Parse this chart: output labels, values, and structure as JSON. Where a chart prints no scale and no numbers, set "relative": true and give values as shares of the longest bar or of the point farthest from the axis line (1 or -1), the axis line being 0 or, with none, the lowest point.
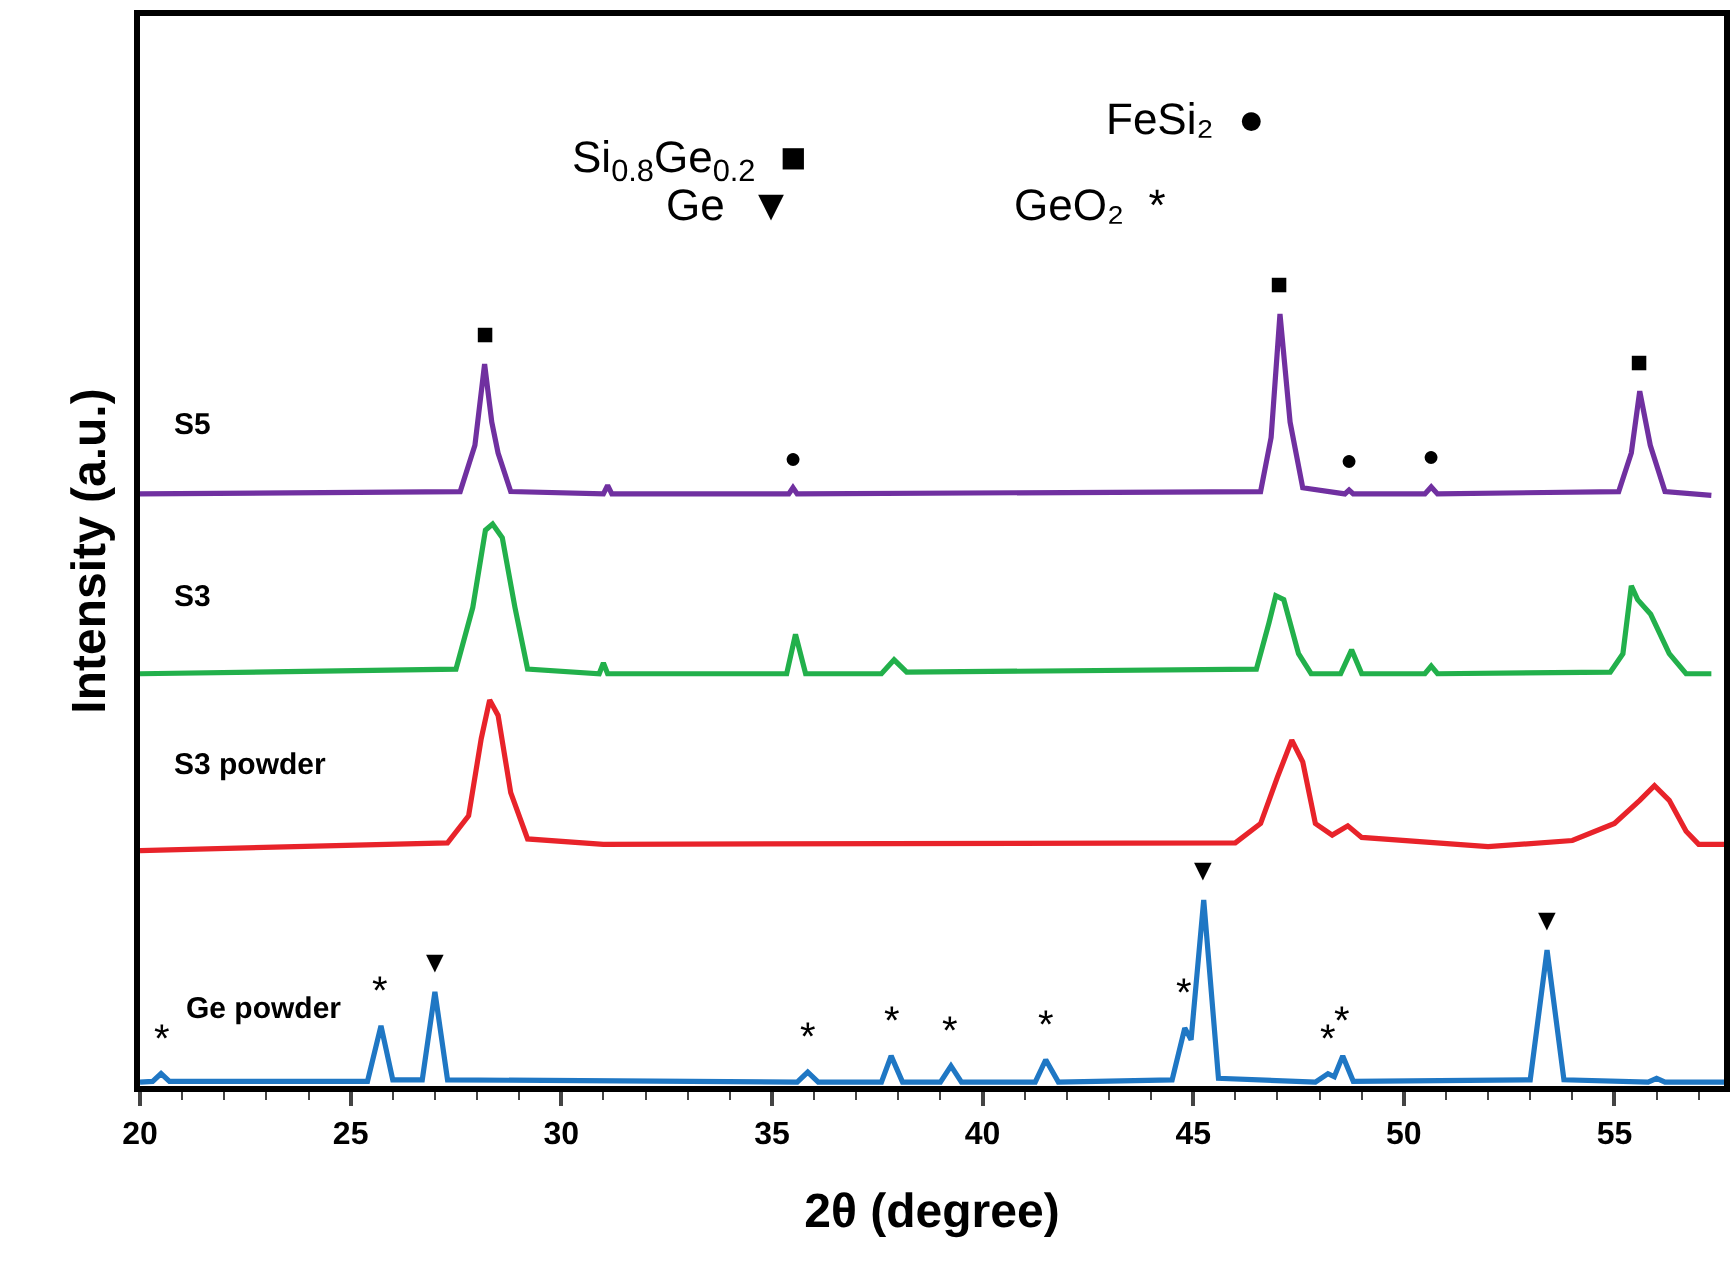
{
  "chart_data": {
    "type": "line",
    "relative": true,
    "xlabel": "2θ (degree)",
    "ylabel": "Intensity (a.u.)",
    "xlim": [
      20,
      57.6
    ],
    "xticks": [
      20,
      25,
      30,
      35,
      40,
      45,
      50,
      55
    ],
    "legend": false,
    "marker": "none",
    "line_style": "solid",
    "series": [
      {
        "name": "S5",
        "color": "#7030a0",
        "x": [
          20,
          27.6,
          27.95,
          28.18,
          28.35,
          28.5,
          28.8,
          31,
          31.1,
          31.2,
          35.4,
          35.5,
          35.6,
          46.6,
          46.85,
          47.06,
          47.3,
          47.6,
          48.6,
          48.7,
          48.8,
          50.5,
          50.65,
          50.8,
          55.1,
          55.4,
          55.6,
          55.85,
          56.2,
          57.3
        ],
        "values": [
          0.767,
          0.77,
          0.83,
          0.935,
          0.86,
          0.82,
          0.77,
          0.767,
          0.778,
          0.767,
          0.767,
          0.775,
          0.767,
          0.77,
          0.84,
          1,
          0.86,
          0.775,
          0.767,
          0.772,
          0.767,
          0.767,
          0.776,
          0.767,
          0.77,
          0.82,
          0.9,
          0.83,
          0.77,
          0.765
        ]
      },
      {
        "name": "S3",
        "color": "#22b04b",
        "x": [
          20,
          27.5,
          27.9,
          28.2,
          28.37,
          28.6,
          28.9,
          29.2,
          30.9,
          31.0,
          31.1,
          35.35,
          35.56,
          35.8,
          37.6,
          37.9,
          38.2,
          46.5,
          46.8,
          46.96,
          47.15,
          47.5,
          47.8,
          48.5,
          48.76,
          49.0,
          50.5,
          50.65,
          50.8,
          54.9,
          55.2,
          55.4,
          55.55,
          55.86,
          56.3,
          56.7,
          57.3
        ],
        "values": [
          0.534,
          0.54,
          0.62,
          0.72,
          0.728,
          0.71,
          0.62,
          0.54,
          0.534,
          0.548,
          0.534,
          0.534,
          0.585,
          0.534,
          0.534,
          0.552,
          0.536,
          0.54,
          0.6,
          0.635,
          0.63,
          0.56,
          0.534,
          0.534,
          0.565,
          0.534,
          0.534,
          0.544,
          0.534,
          0.536,
          0.56,
          0.648,
          0.63,
          0.611,
          0.56,
          0.534,
          0.534
        ]
      },
      {
        "name": "S3 powder",
        "color": "#e8232a",
        "x": [
          20,
          27.3,
          27.8,
          28.1,
          28.3,
          28.5,
          28.8,
          29.2,
          31,
          46.0,
          46.6,
          47.0,
          47.34,
          47.6,
          47.9,
          48.3,
          48.67,
          49.0,
          52,
          54,
          55.0,
          55.6,
          55.95,
          56.3,
          56.7,
          57.0,
          57.6
        ],
        "values": [
          0.305,
          0.315,
          0.35,
          0.45,
          0.5,
          0.48,
          0.38,
          0.32,
          0.313,
          0.315,
          0.34,
          0.4,
          0.448,
          0.42,
          0.34,
          0.325,
          0.337,
          0.322,
          0.31,
          0.318,
          0.34,
          0.37,
          0.389,
          0.37,
          0.33,
          0.313,
          0.313
        ]
      },
      {
        "name": "Ge powder",
        "color": "#1f77c4",
        "x": [
          20,
          20.3,
          20.5,
          20.7,
          25.4,
          25.72,
          26.0,
          26.7,
          27.0,
          27.3,
          35.6,
          35.85,
          36.1,
          37.6,
          37.83,
          38.1,
          39.0,
          39.25,
          39.5,
          41.25,
          41.5,
          41.8,
          44.5,
          44.8,
          44.95,
          45.25,
          45.6,
          47.9,
          48.2,
          48.35,
          48.55,
          48.8,
          53.0,
          53.4,
          53.8,
          55.8,
          56.0,
          56.2,
          57.6
        ],
        "values": [
          0.005,
          0.006,
          0.016,
          0.006,
          0.006,
          0.078,
          0.008,
          0.008,
          0.122,
          0.008,
          0.005,
          0.018,
          0.005,
          0.005,
          0.039,
          0.005,
          0.005,
          0.026,
          0.005,
          0.005,
          0.034,
          0.005,
          0.008,
          0.075,
          0.06,
          0.241,
          0.01,
          0.005,
          0.016,
          0.012,
          0.039,
          0.006,
          0.008,
          0.176,
          0.008,
          0.005,
          0.01,
          0.005,
          0.005
        ]
      }
    ],
    "annotations": [
      "Si$_{0.8}$Ge$_{0.2}$  ■",
      "FeSi₂  ●",
      "Ge  ▼",
      "GeO₂  *",
      {
        "text": "■",
        "x": 28.18,
        "y": 0.935
      },
      {
        "text": "■",
        "x": 47.06,
        "y": 1
      },
      {
        "text": "■",
        "x": 55.6,
        "y": 0.9
      },
      {
        "text": "●",
        "x": 35.5,
        "y": 0.775
      },
      {
        "text": "●",
        "x": 48.7,
        "y": 0.772
      },
      {
        "text": "●",
        "x": 50.65,
        "y": 0.776
      },
      {
        "text": "▼",
        "x": 27.0,
        "y": 0.122
      },
      {
        "text": "▼",
        "x": 45.25,
        "y": 0.241
      },
      {
        "text": "▼",
        "x": 53.4,
        "y": 0.176
      },
      {
        "text": "*",
        "x": 20.5,
        "y": 0.016
      },
      {
        "text": "*",
        "x": 25.72,
        "y": 0.078
      },
      {
        "text": "*",
        "x": 35.85,
        "y": 0.018
      },
      {
        "text": "*",
        "x": 37.83,
        "y": 0.039
      },
      {
        "text": "*",
        "x": 39.25,
        "y": 0.026
      },
      {
        "text": "*",
        "x": 41.5,
        "y": 0.034
      },
      {
        "text": "*",
        "x": 44.8,
        "y": 0.075
      },
      {
        "text": "*",
        "x": 48.2,
        "y": 0.016
      },
      {
        "text": "*",
        "x": 48.55,
        "y": 0.039
      }
    ]
  }
}
